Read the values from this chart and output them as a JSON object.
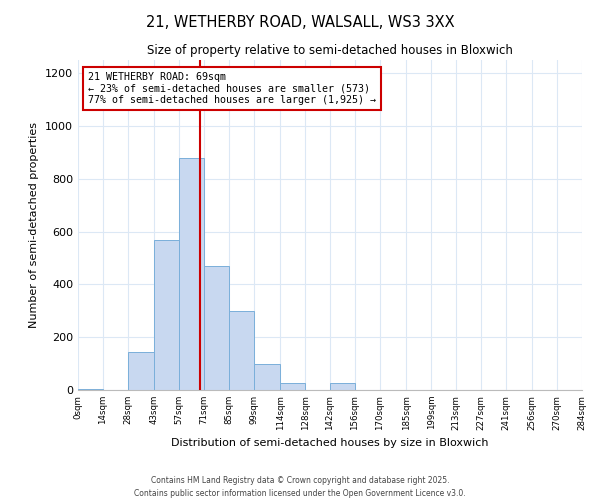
{
  "title_line1": "21, WETHERBY ROAD, WALSALL, WS3 3XX",
  "title_line2": "Size of property relative to semi-detached houses in Bloxwich",
  "xlabel": "Distribution of semi-detached houses by size in Bloxwich",
  "ylabel": "Number of semi-detached properties",
  "property_label": "21 WETHERBY ROAD: 69sqm",
  "pct_smaller": "23%",
  "pct_larger": "77%",
  "n_smaller": "573",
  "n_larger": "1,925",
  "property_value": 69,
  "bin_edges": [
    0,
    14,
    28,
    43,
    57,
    71,
    85,
    99,
    114,
    128,
    142,
    156,
    170,
    185,
    199,
    213,
    227,
    241,
    256,
    270,
    284
  ],
  "bin_counts": [
    5,
    0,
    145,
    570,
    880,
    470,
    300,
    100,
    25,
    0,
    25,
    0,
    0,
    0,
    0,
    0,
    0,
    0,
    0,
    0
  ],
  "bar_color": "#c8d8f0",
  "bar_edgecolor": "#7aafda",
  "vline_color": "#cc0000",
  "annotation_box_edgecolor": "#cc0000",
  "grid_color": "#dce8f5",
  "background_color": "#ffffff",
  "ylim": [
    0,
    1250
  ],
  "yticks": [
    0,
    200,
    400,
    600,
    800,
    1000,
    1200
  ],
  "tick_labels": [
    "0sqm",
    "14sqm",
    "28sqm",
    "43sqm",
    "57sqm",
    "71sqm",
    "85sqm",
    "99sqm",
    "114sqm",
    "128sqm",
    "142sqm",
    "156sqm",
    "170sqm",
    "185sqm",
    "199sqm",
    "213sqm",
    "227sqm",
    "241sqm",
    "256sqm",
    "270sqm",
    "284sqm"
  ],
  "footer_line1": "Contains HM Land Registry data © Crown copyright and database right 2025.",
  "footer_line2": "Contains public sector information licensed under the Open Government Licence v3.0."
}
